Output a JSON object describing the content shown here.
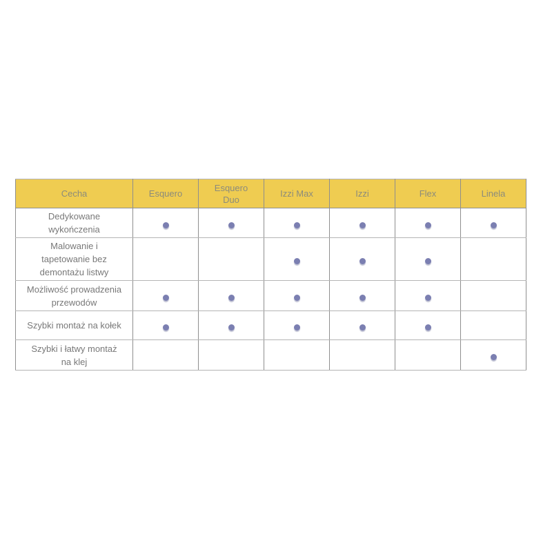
{
  "table": {
    "name": "product-feature-comparison",
    "columns": [
      {
        "id": "cecha",
        "label": "Cecha"
      },
      {
        "id": "esquero",
        "label": "Esquero"
      },
      {
        "id": "esquero-duo",
        "label": "Esquero\nDuo"
      },
      {
        "id": "izzi-max",
        "label": "Izzi Max"
      },
      {
        "id": "izzi",
        "label": "Izzi"
      },
      {
        "id": "flex",
        "label": "Flex"
      },
      {
        "id": "linela",
        "label": "Linela"
      }
    ],
    "rows": [
      {
        "feature": "Dedykowane\nwykończenia",
        "marks": [
          true,
          true,
          true,
          true,
          true,
          true
        ]
      },
      {
        "feature": "Malowanie i\ntapetowanie bez\ndemontażu listwy",
        "marks": [
          false,
          false,
          true,
          true,
          true,
          false
        ]
      },
      {
        "feature": "Możliwość prowadzenia\nprzewodów",
        "marks": [
          true,
          true,
          true,
          true,
          true,
          false
        ]
      },
      {
        "feature": "Szybki montaż na kołek",
        "marks": [
          true,
          true,
          true,
          true,
          true,
          false
        ]
      },
      {
        "feature": "Szybki i łatwy montaż\nna klej",
        "marks": [
          false,
          false,
          false,
          false,
          false,
          true
        ]
      }
    ],
    "mark_icon": "filled-dot",
    "colors": {
      "header_bg": "#EFCC51",
      "header_text": "#8B8B7C",
      "body_text": "#787878",
      "dot": "#7B7FB1",
      "border_vertical": "#8E8E8E",
      "border_horizontal": "#B4B4B4"
    }
  }
}
